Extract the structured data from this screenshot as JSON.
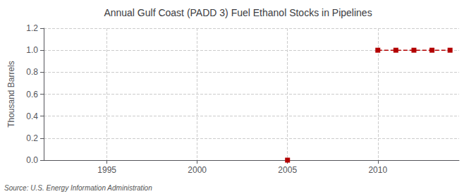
{
  "chart_data": {
    "type": "line",
    "title": "Annual Gulf Coast (PADD 3) Fuel Ethanol Stocks in Pipelines",
    "ylabel": "Thousand Barrels",
    "source": "Source: U.S. Energy Information Administration",
    "color": "#b30000",
    "series": [
      {
        "x": [
          2005
        ],
        "values": [
          0.0
        ],
        "marker": "square",
        "line_style": "none"
      },
      {
        "x": [
          2010,
          2011,
          2012,
          2013,
          2014
        ],
        "values": [
          1.0,
          1.0,
          1.0,
          1.0,
          1.0
        ],
        "marker": "square",
        "line_style": "dashed"
      }
    ],
    "xlim": [
      1991.5,
      2014.5
    ],
    "xticks": [
      1995,
      2000,
      2005,
      2010
    ],
    "ylim": [
      0.0,
      1.2
    ],
    "yticks": [
      {
        "value": 0,
        "label": "0.0"
      },
      0.2,
      0.4,
      0.6,
      0.8,
      {
        "value": 1,
        "label": "1.0"
      },
      1.2
    ],
    "grid": true
  }
}
